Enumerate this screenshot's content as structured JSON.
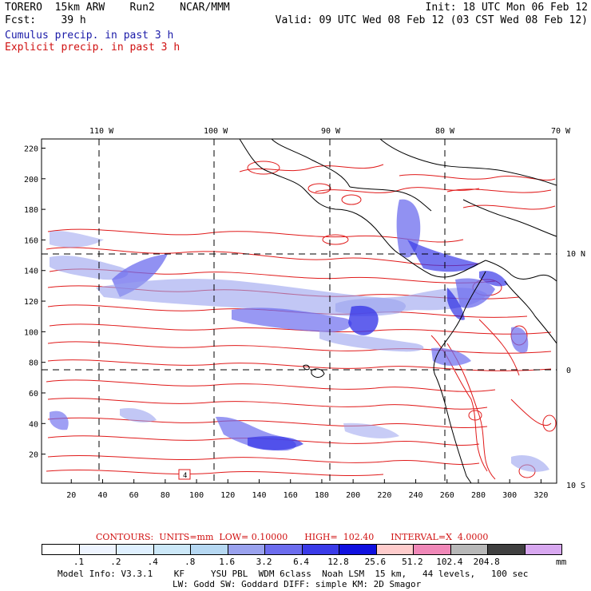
{
  "header": {
    "line1_left": "TORERO  15km ARW    Run2    NCAR/MMM",
    "line1_right": "Init: 18 UTC Mon 06 Feb 12",
    "line2_left": "Fcst:    39 h",
    "line2_right": "Valid: 09 UTC Wed 08 Feb 12 (03 CST Wed 08 Feb 12)"
  },
  "legend": {
    "cumulus": "Cumulus precip. in past 3 h",
    "explicit": "Explicit precip. in past 3 h"
  },
  "map": {
    "top_lon_labels": [
      "110 W",
      "100 W",
      "90 W",
      "80 W",
      "70 W"
    ],
    "right_lat_labels": [
      "10 N",
      "0",
      "10 S"
    ],
    "y_ticks": [
      "220",
      "200",
      "180",
      "160",
      "140",
      "120",
      "100",
      "80",
      "60",
      "40",
      "20"
    ],
    "x_ticks": [
      "20",
      "40",
      "60",
      "80",
      "100",
      "120",
      "140",
      "160",
      "180",
      "200",
      "220",
      "240",
      "260",
      "280",
      "300",
      "320"
    ],
    "grid_x_range": [
      1,
      330
    ],
    "grid_y_range": [
      1,
      226
    ],
    "marker_label": "4",
    "colors": {
      "cumulus": "#4646e6",
      "explicit": "#e01a1a",
      "coast": "#000000",
      "grid": "#000000"
    }
  },
  "contours_line": "CONTOURS:  UNITS=mm  LOW= 0.10000      HIGH=  102.40      INTERVAL=X  4.0000",
  "colorbar": {
    "units": "mm",
    "labels": [
      ".1",
      ".2",
      ".4",
      ".8",
      "1.6",
      "3.2",
      "6.4",
      "12.8",
      "25.6",
      "51.2",
      "102.4",
      "204.8"
    ],
    "colors": [
      "#ffffff",
      "#eef4ff",
      "#dff0ff",
      "#cce8f8",
      "#b6d8f2",
      "#9aa2ee",
      "#6c6cee",
      "#3a3ae8",
      "#1010e0",
      "#ffcccc",
      "#f088b8",
      "#b8b8b8",
      "#404040",
      "#d8a8f0"
    ]
  },
  "model_info": {
    "line1": "Model Info: V3.3.1    KF     YSU PBL  WDM 6class  Noah LSM  15 km,   44 levels,   100 sec",
    "line2": "LW: Godd SW: Goddard DIFF: simple KM: 2D Smagor"
  }
}
